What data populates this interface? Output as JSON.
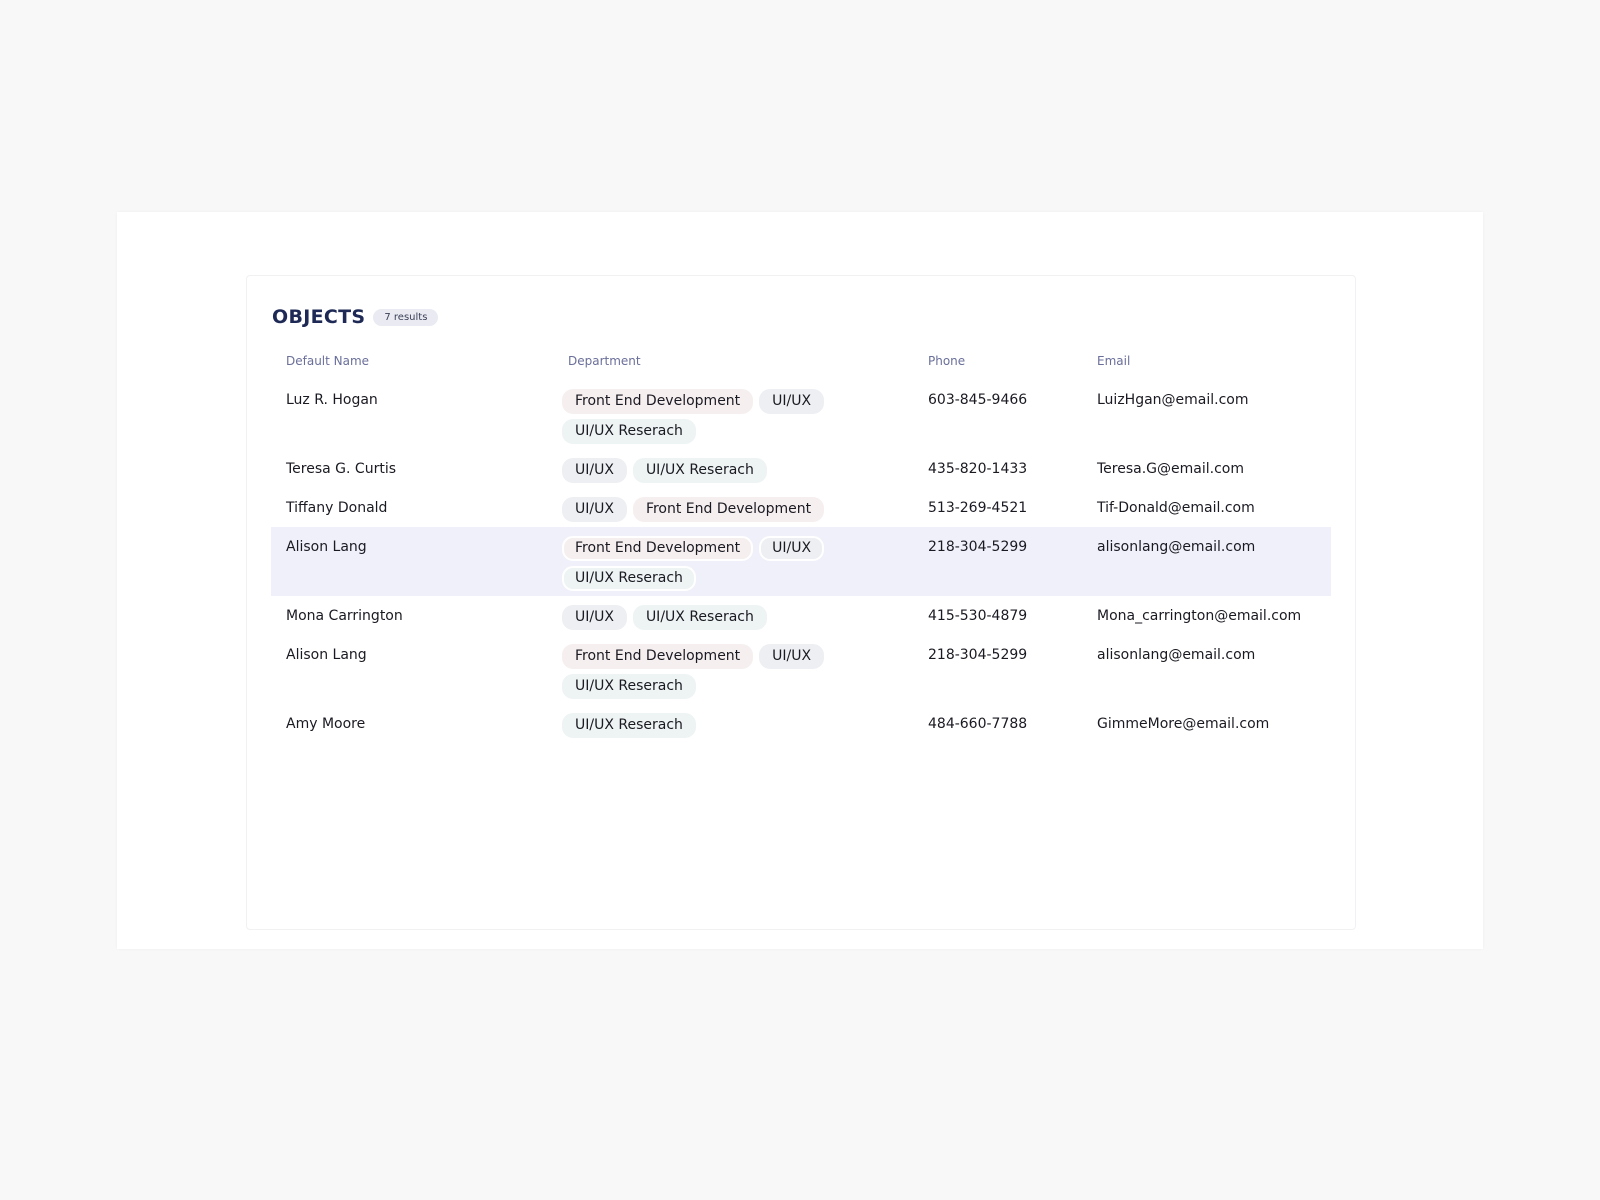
{
  "title": "OBJECTS",
  "results_badge": "7 results",
  "columns": [
    "Default Name",
    "Department",
    "Phone",
    "Email"
  ],
  "rows": [
    {
      "name": "Luz R. Hogan",
      "departments": [
        "Front End Development",
        "UI/UX",
        "UI/UX Reserach"
      ],
      "phone": "603-845-9466",
      "email": "LuizHgan@email.com",
      "highlighted": false
    },
    {
      "name": "Teresa G. Curtis",
      "departments": [
        "UI/UX",
        "UI/UX Reserach"
      ],
      "phone": "435-820-1433",
      "email": "Teresa.G@email.com",
      "highlighted": false
    },
    {
      "name": "Tiffany Donald",
      "departments": [
        "UI/UX",
        "Front End Development"
      ],
      "phone": "513-269-4521",
      "email": "Tif-Donald@email.com",
      "highlighted": false
    },
    {
      "name": "Alison Lang",
      "departments": [
        "Front End Development",
        "UI/UX",
        "UI/UX Reserach"
      ],
      "phone": "218-304-5299",
      "email": "alisonlang@email.com",
      "highlighted": true
    },
    {
      "name": "Mona Carrington",
      "departments": [
        "UI/UX",
        "UI/UX Reserach"
      ],
      "phone": "415-530-4879",
      "email": "Mona_carrington@email.com",
      "highlighted": false
    },
    {
      "name": "Alison Lang",
      "departments": [
        "Front End Development",
        "UI/UX",
        "UI/UX Reserach"
      ],
      "phone": "218-304-5299",
      "email": "alisonlang@email.com",
      "highlighted": false
    },
    {
      "name": "Amy Moore",
      "departments": [
        "UI/UX Reserach"
      ],
      "phone": "484-660-7788",
      "email": "GimmeMore@email.com",
      "highlighted": false
    }
  ],
  "colors": {
    "title": "#1e2a55",
    "highlight_row": "#f0f0fa",
    "tag_front_end": "#f6efef",
    "tag_uiux": "#eeeff3",
    "tag_research": "#eef3f3"
  }
}
